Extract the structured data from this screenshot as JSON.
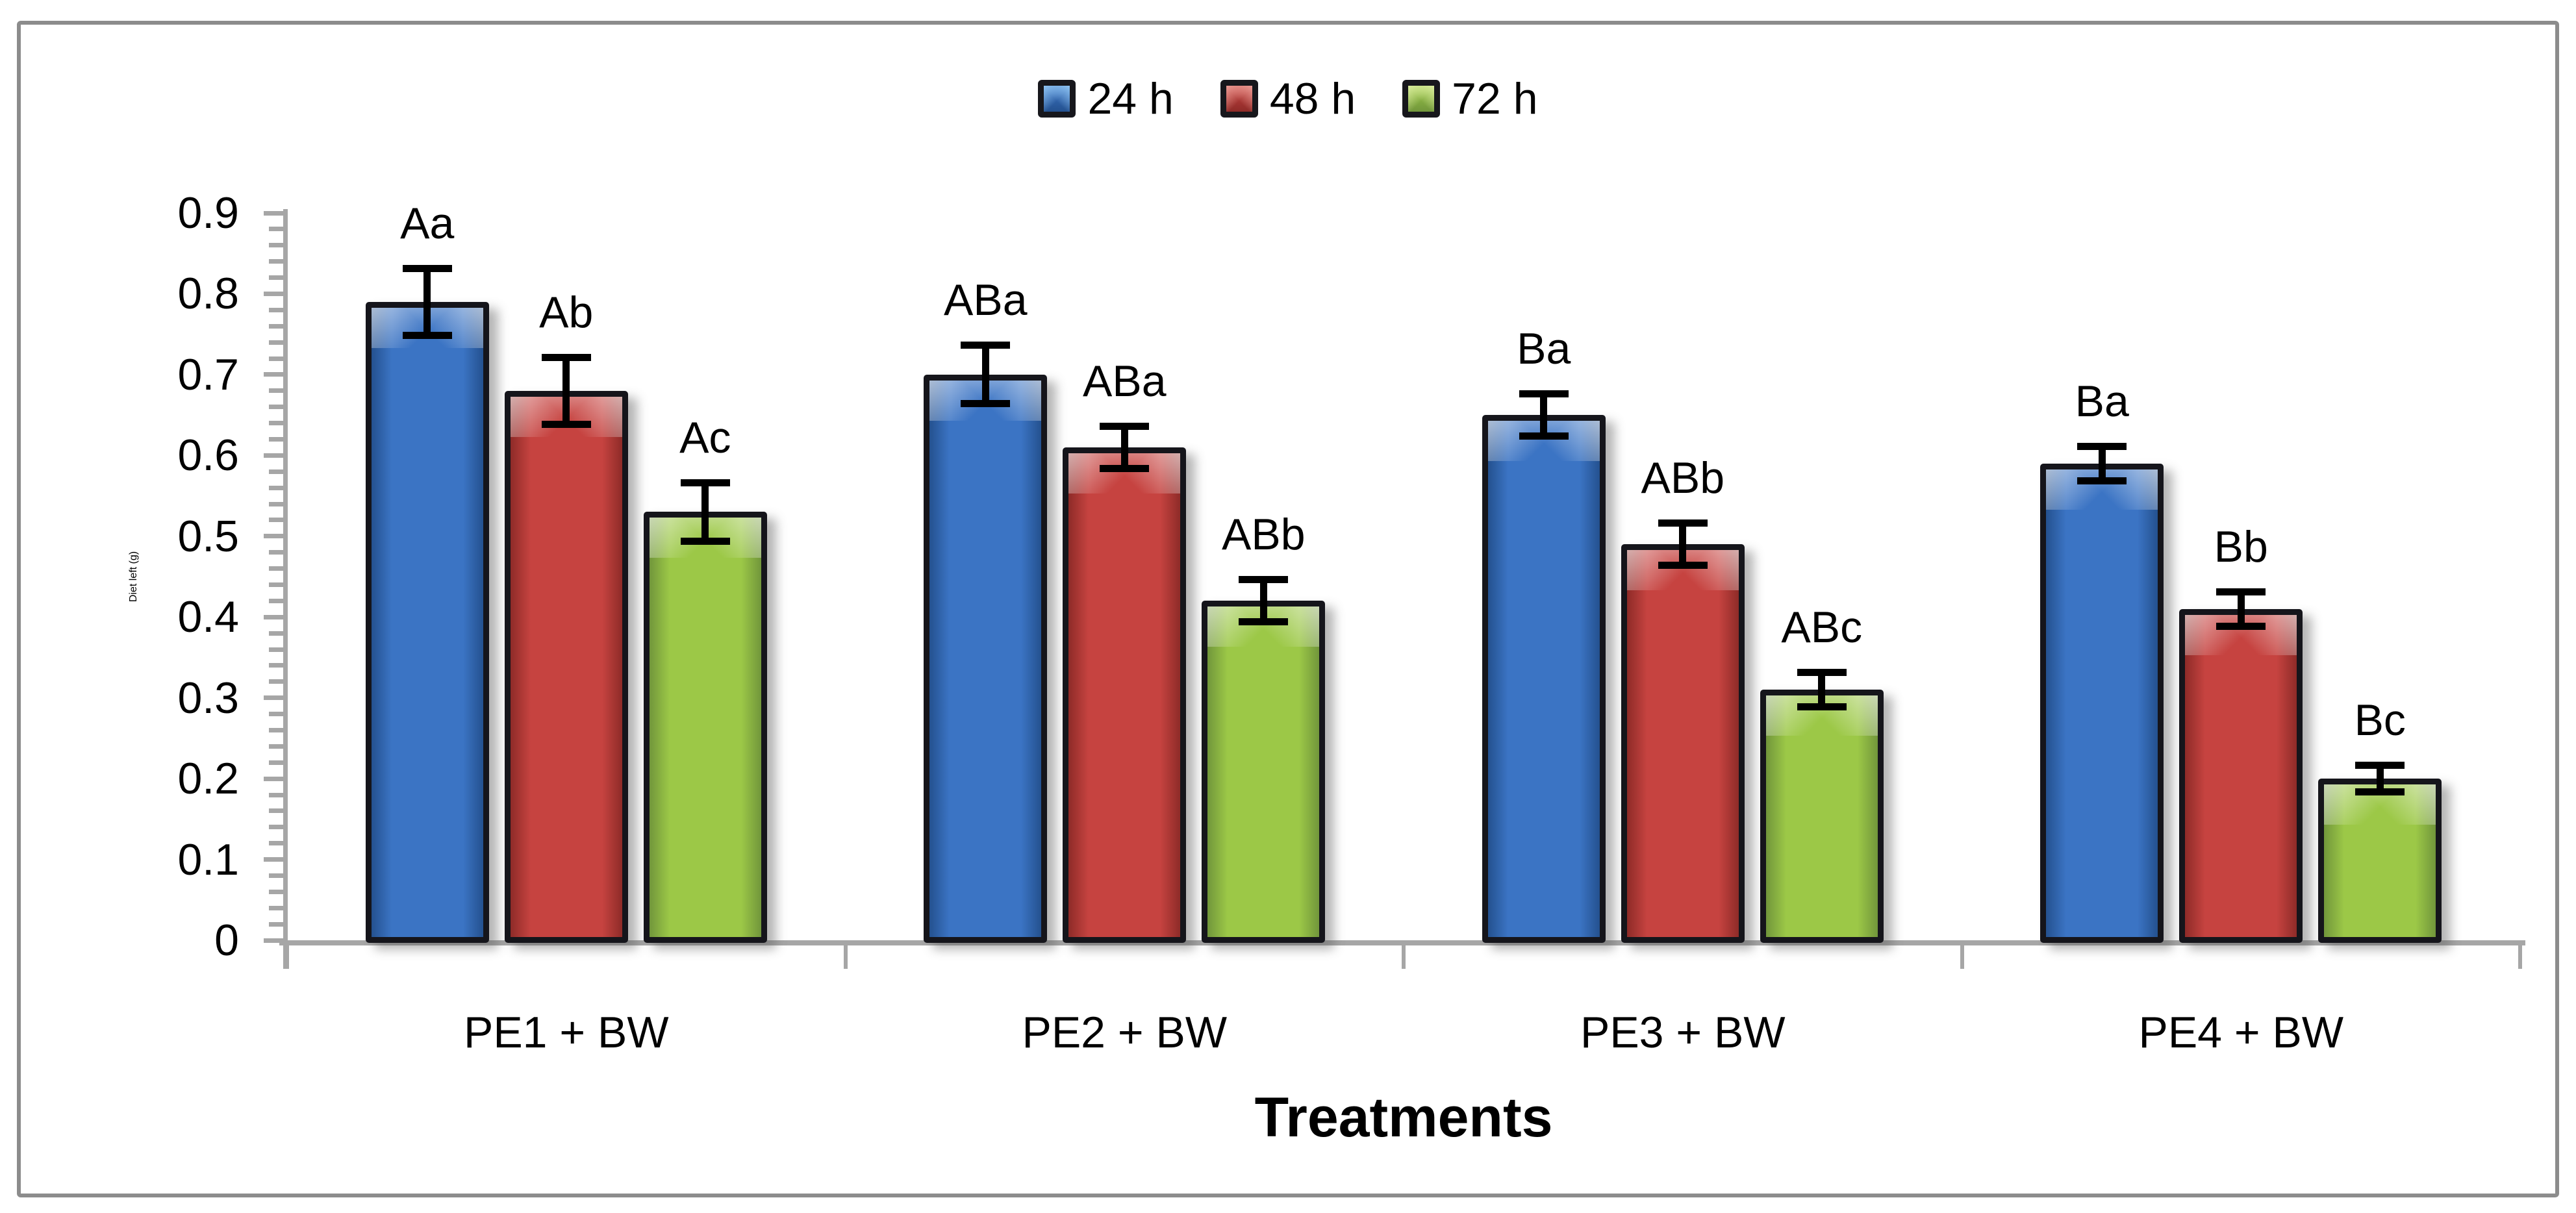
{
  "chart_data": {
    "type": "bar",
    "title": "",
    "xlabel": "Treatments",
    "ylabel": "Diet left (g)",
    "ylim": [
      0,
      0.9
    ],
    "y_major_step": 0.1,
    "y_minor_step": 0.02,
    "y_tick_labels": [
      "0",
      "0.1",
      "0.2",
      "0.3",
      "0.4",
      "0.5",
      "0.6",
      "0.7",
      "0.8",
      "0.9"
    ],
    "grid": false,
    "legend_position": "top-center",
    "categories": [
      "PE1 + BW",
      "PE2 + BW",
      "PE3 + BW",
      "PE4 + BW"
    ],
    "series": [
      {
        "name": "24 h",
        "color_main": "#3b74c4",
        "color_dark": "#24518f",
        "color_light": "#8fc3f0",
        "values": [
          0.79,
          0.7,
          0.65,
          0.59
        ],
        "errors": [
          0.04,
          0.035,
          0.025,
          0.02
        ],
        "sig_labels": [
          "Aa",
          "ABa",
          "Ba",
          "Ba"
        ]
      },
      {
        "name": "48 h",
        "color_main": "#c64340",
        "color_dark": "#8e2b28",
        "color_light": "#e89b94",
        "values": [
          0.68,
          0.61,
          0.49,
          0.41
        ],
        "errors": [
          0.04,
          0.025,
          0.025,
          0.02
        ],
        "sig_labels": [
          "Ab",
          "ABa",
          "ABb",
          "Bb"
        ]
      },
      {
        "name": "72 h",
        "color_main": "#9cc847",
        "color_dark": "#71963b",
        "color_light": "#d9eb9f",
        "values": [
          0.53,
          0.42,
          0.31,
          0.2
        ],
        "errors": [
          0.035,
          0.025,
          0.02,
          0.015
        ],
        "sig_labels": [
          "Ac",
          "ABb",
          "ABc",
          "Bc"
        ]
      }
    ]
  },
  "colors": {
    "axis": "#a6a6a6",
    "error_bar": "#000000",
    "bar_border": "#15151b",
    "frame_border": "#8c8c8c",
    "background": "#ffffff",
    "text": "#000000"
  }
}
